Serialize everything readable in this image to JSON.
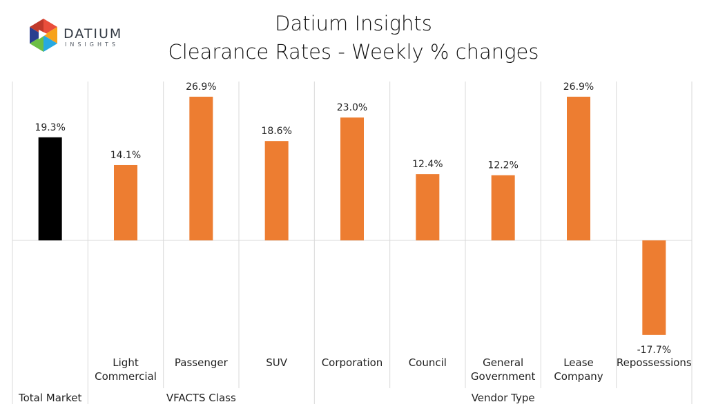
{
  "brand": {
    "name": "DATIUM",
    "sub": "INSIGHTS",
    "colors": [
      "#e94e3c",
      "#f7a21b",
      "#27a9e1",
      "#2a3e8f",
      "#6cbe45"
    ]
  },
  "chart_data": {
    "type": "bar",
    "title": "Datium Insights",
    "subtitle": "Clearance Rates - Weekly % changes",
    "xlabel": "",
    "ylabel": "",
    "ylim": [
      -20,
      30
    ],
    "grid": false,
    "legend": "none",
    "categories": [
      "",
      "Light Commercial",
      "Passenger",
      "SUV",
      "Corporation",
      "Council",
      "General Government",
      "Lease Company",
      "Repossessions"
    ],
    "category_lines": [
      [],
      [
        "Light",
        "Commercial"
      ],
      [
        "Passenger"
      ],
      [
        "SUV"
      ],
      [
        "Corporation"
      ],
      [
        "Council"
      ],
      [
        "General",
        "Government"
      ],
      [
        "Lease",
        "Company"
      ],
      [
        "Repossessions"
      ]
    ],
    "values": [
      19.3,
      14.1,
      26.9,
      18.6,
      23.0,
      12.4,
      12.2,
      26.9,
      -17.7
    ],
    "data_labels": [
      "19.3%",
      "14.1%",
      "26.9%",
      "18.6%",
      "23.0%",
      "12.4%",
      "12.2%",
      "26.9%",
      "-17.7%"
    ],
    "bar_colors": [
      "#000000",
      "#ed7d31",
      "#ed7d31",
      "#ed7d31",
      "#ed7d31",
      "#ed7d31",
      "#ed7d31",
      "#ed7d31",
      "#ed7d31"
    ],
    "groups": [
      {
        "label": "Total Market",
        "start": 0,
        "end": 0
      },
      {
        "label": "VFACTS Class",
        "start": 1,
        "end": 3
      },
      {
        "label": "Vendor Type",
        "start": 4,
        "end": 8
      }
    ]
  }
}
